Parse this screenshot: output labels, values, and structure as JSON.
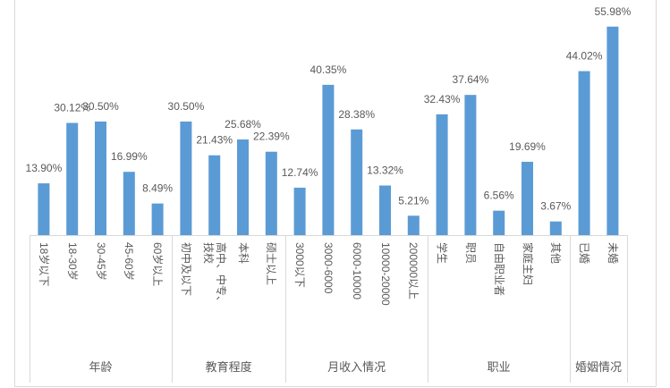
{
  "chart_data": {
    "type": "bar",
    "ylim": [
      0,
      60
    ],
    "grid": false,
    "legend": "none",
    "colors": {
      "bar": "#5B9BD5",
      "text": "#595959",
      "axis": "#D9D9D9"
    },
    "groups": [
      {
        "name": "年龄",
        "categories": [
          "18岁以下",
          "18-30岁",
          "30-45岁",
          "45-60岁",
          "60岁以上"
        ],
        "values": [
          13.9,
          30.12,
          30.5,
          16.99,
          8.49
        ],
        "value_labels": [
          "13.90%",
          "30.12%",
          "30.50%",
          "16.99%",
          "8.49%"
        ]
      },
      {
        "name": "教育程度",
        "categories": [
          "初中及以下",
          "高中、中专、技校",
          "本科",
          "硕士以上"
        ],
        "values": [
          30.5,
          21.43,
          25.68,
          22.39
        ],
        "value_labels": [
          "30.50%",
          "21.43%",
          "25.68%",
          "22.39%"
        ]
      },
      {
        "name": "月收入情况",
        "categories": [
          "3000以下",
          "3000-6000",
          "6000-10000",
          "10000-20000",
          "200000以上"
        ],
        "values": [
          12.74,
          40.35,
          28.38,
          13.32,
          5.21
        ],
        "value_labels": [
          "12.74%",
          "40.35%",
          "28.38%",
          "13.32%",
          "5.21%"
        ]
      },
      {
        "name": "职业",
        "categories": [
          "学生",
          "职员",
          "自由职业者",
          "家庭主妇",
          "其他"
        ],
        "values": [
          32.43,
          37.64,
          6.56,
          19.69,
          3.67
        ],
        "value_labels": [
          "32.43%",
          "37.64%",
          "6.56%",
          "19.69%",
          "3.67%"
        ]
      },
      {
        "name": "婚姻情况",
        "categories": [
          "已婚",
          "未婚"
        ],
        "values": [
          44.02,
          55.98
        ],
        "value_labels": [
          "44.02%",
          "55.98%"
        ]
      }
    ]
  }
}
